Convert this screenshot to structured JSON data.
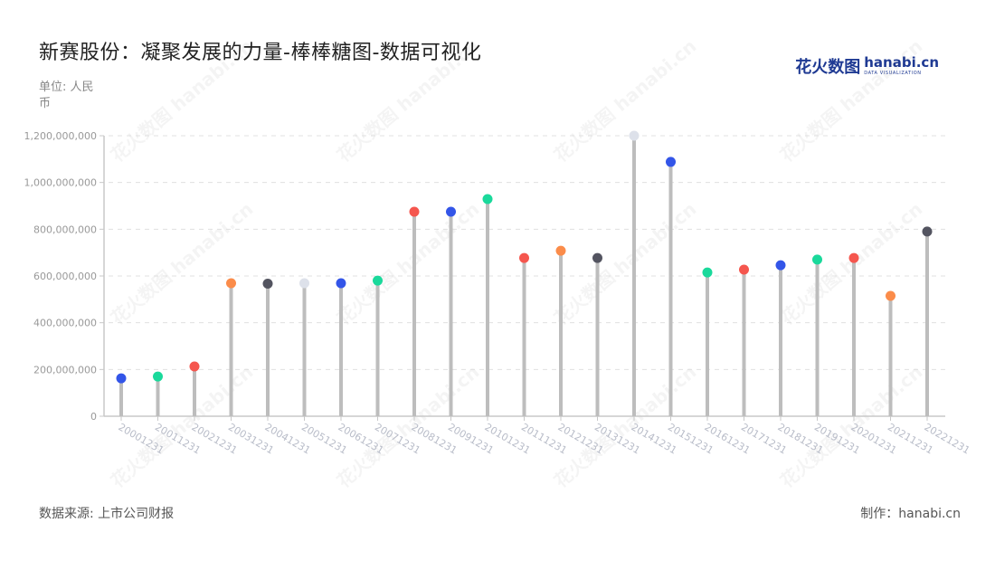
{
  "header": {
    "title": "新赛股份：凝聚发展的力量-棒棒糖图-数据可视化",
    "unit": "单位: 人民币",
    "logo_cn": "花火数图",
    "logo_en": "hanabi.cn",
    "logo_sub": "DATA VISUALIZATION"
  },
  "footer": {
    "source": "数据来源: 上市公司财报",
    "maker": "制作：hanabi.cn"
  },
  "watermark": "花火数图 hanabi.cn",
  "colors": {
    "stem": "#bdbdbd",
    "grid": "#e0e0e0",
    "axis": "#c8c8c8",
    "tick_label": "#999999",
    "x_label": "#b8bcc8",
    "palette": [
      "#3355e8",
      "#1ad99b",
      "#f5564e",
      "#fb8c4a",
      "#535460",
      "#dde1ea"
    ]
  },
  "chart_data": {
    "type": "lollipop",
    "title": "新赛股份：凝聚发展的力量-棒棒糖图-数据可视化",
    "xlabel": "",
    "ylabel": "单位: 人民币",
    "ylim": [
      0,
      1200000000
    ],
    "yticks": [
      0,
      200000000,
      400000000,
      600000000,
      800000000,
      1000000000,
      1200000000
    ],
    "ytick_labels": [
      "0",
      "200,000,000",
      "400,000,000",
      "600,000,000",
      "800,000,000",
      "1,000,000,000",
      "1,200,000,000"
    ],
    "grid": true,
    "legend": "none",
    "categories": [
      "20001231",
      "20011231",
      "20021231",
      "20031231",
      "20041231",
      "20051231",
      "20061231",
      "20071231",
      "20081231",
      "20091231",
      "20101231",
      "20111231",
      "20121231",
      "20131231",
      "20141231",
      "20151231",
      "20161231",
      "20171231",
      "20181231",
      "20191231",
      "20201231",
      "20211231",
      "20221231"
    ],
    "values": [
      162000000,
      170000000,
      213000000,
      569000000,
      567000000,
      569000000,
      569000000,
      580000000,
      875000000,
      875000000,
      929000000,
      677000000,
      708000000,
      677000000,
      1200000000,
      1088000000,
      615000000,
      627000000,
      646000000,
      670000000,
      677000000,
      515000000,
      790000000
    ],
    "dot_colors": [
      "#3355e8",
      "#1ad99b",
      "#f5564e",
      "#fb8c4a",
      "#535460",
      "#dde1ea",
      "#3355e8",
      "#1ad99b",
      "#f5564e",
      "#3355e8",
      "#1ad99b",
      "#f5564e",
      "#fb8c4a",
      "#535460",
      "#dde1ea",
      "#3355e8",
      "#1ad99b",
      "#f5564e",
      "#3355e8",
      "#1ad99b",
      "#f5564e",
      "#fb8c4a",
      "#535460"
    ]
  }
}
